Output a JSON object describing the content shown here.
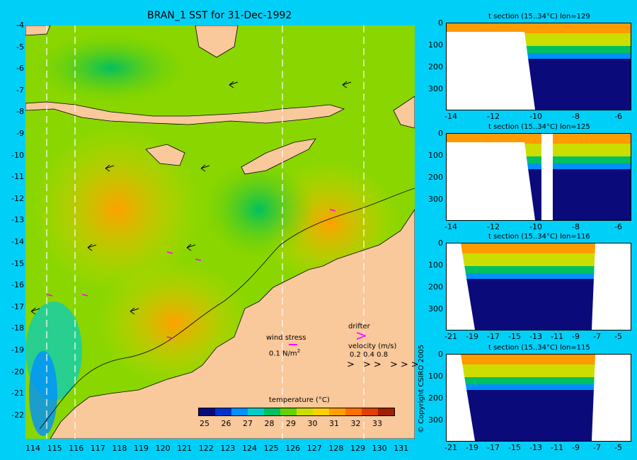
{
  "main": {
    "title": "BRAN_1 SST for 31-Dec-1992",
    "lat_ticks": [
      "-4",
      "-5",
      "-6",
      "-7",
      "-8",
      "-9",
      "-10",
      "-11",
      "-12",
      "-13",
      "-14",
      "-15",
      "-16",
      "-17",
      "-18",
      "-19",
      "-20",
      "-21",
      "-22"
    ],
    "lon_ticks": [
      "114",
      "115",
      "116",
      "117",
      "118",
      "119",
      "120",
      "121",
      "122",
      "123",
      "124",
      "125",
      "126",
      "127",
      "128",
      "129",
      "130",
      "131"
    ],
    "legend": {
      "wind_stress_label": "wind stress",
      "wind_stress_value": "0.1 N/m",
      "wind_stress_sup": "2",
      "drifter_label": "drifter",
      "velocity_label": "velocity (m/s)",
      "velocity_values": "0.2 0.4 0.8"
    },
    "colorbar": {
      "title": "temperature (°C)",
      "ticks": [
        "25",
        "26",
        "27",
        "28",
        "29",
        "30",
        "31",
        "32",
        "33"
      ],
      "colors": [
        "#0a0a7a",
        "#0033cc",
        "#0090ff",
        "#00cccc",
        "#00c060",
        "#66d000",
        "#ccdd00",
        "#ffd000",
        "#ffa000",
        "#ff7000",
        "#e04000",
        "#a02000"
      ]
    },
    "colors": {
      "land": "#f9c89b",
      "background": "#00d0f8",
      "drifter": "#ff00ff"
    }
  },
  "sections": [
    {
      "title": "t section (15..34°C) lon=129",
      "x_ticks": [
        "-14",
        "-12",
        "-10",
        "-8",
        "-6"
      ],
      "y_ticks": [
        "0",
        "100",
        "200",
        "300"
      ]
    },
    {
      "title": "t section (15..34°C) lon=125",
      "x_ticks": [
        "-14",
        "-12",
        "-10",
        "-8",
        "-6"
      ],
      "y_ticks": [
        "0",
        "100",
        "200",
        "300"
      ]
    },
    {
      "title": "t section (15..34°C) lon=116",
      "x_ticks": [
        "-21",
        "-19",
        "-17",
        "-15",
        "-13",
        "-11",
        "-9",
        "-7",
        "-5"
      ],
      "y_ticks": [
        "0",
        "100",
        "200",
        "300"
      ]
    },
    {
      "title": "t section (15..34°C) lon=115",
      "x_ticks": [
        "-21",
        "-19",
        "-17",
        "-15",
        "-13",
        "-11",
        "-9",
        "-7",
        "-5"
      ],
      "y_ticks": [
        "0",
        "100",
        "200",
        "300"
      ]
    }
  ],
  "copyright": "© Copyright CSIRO 2005"
}
